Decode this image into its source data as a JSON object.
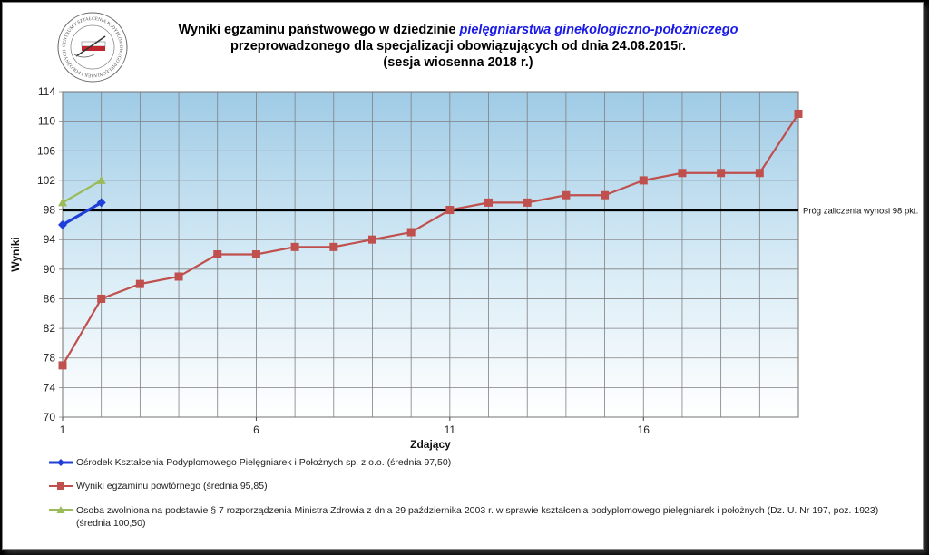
{
  "title": {
    "line1_prefix": "Wyniki egzaminu państwowego w dziedzinie ",
    "line1_highlight": "pielęgniarstwa  ginekologiczno-położniczego",
    "line2": "przeprowadzonego dla specjalizacji obowiązujących od dnia 24.08.2015r.",
    "line3": "(sesja wiosenna 2018 r.)"
  },
  "chart_data": {
    "type": "line",
    "xlabel": "Zdający",
    "ylabel": "Wyniki",
    "ylim": [
      70,
      114
    ],
    "yticks": [
      70,
      74,
      78,
      82,
      86,
      90,
      94,
      98,
      102,
      106,
      110,
      114
    ],
    "xticks": [
      1,
      6,
      11,
      16
    ],
    "xlim": [
      1,
      20
    ],
    "grid": true,
    "threshold": {
      "value": 98,
      "label": "Próg zaliczenia wynosi 98 pkt."
    },
    "series": [
      {
        "name": "Ośrodek Kształcenia Podyplomowego Pielęgniarek i Położnych sp. z o.o. (średnia 97,50)",
        "color": "#1f3fd6",
        "marker": "diamond",
        "x": [
          1,
          2
        ],
        "values": [
          96,
          99
        ]
      },
      {
        "name": "Wyniki egzaminu powtórnego (średnia 95,85)",
        "color": "#c0504d",
        "marker": "square",
        "x": [
          1,
          2,
          3,
          4,
          5,
          6,
          7,
          8,
          9,
          10,
          11,
          12,
          13,
          14,
          15,
          16,
          17,
          18,
          19,
          20
        ],
        "values": [
          77,
          86,
          88,
          89,
          92,
          92,
          93,
          93,
          94,
          95,
          98,
          99,
          99,
          100,
          100,
          102,
          103,
          103,
          103,
          111
        ]
      },
      {
        "name": "Osoba zwolniona na podstawie § 7 rozporządzenia Ministra Zdrowia z dnia 29 października 2003 r. w sprawie kształcenia podyplomowego pielęgniarek i położnych (Dz. U. Nr 197, poz. 1923) (średnia 100,50)",
        "color": "#9bbb59",
        "marker": "triangle",
        "x": [
          1,
          2
        ],
        "values": [
          99,
          102
        ]
      }
    ]
  },
  "legend": {
    "item1_label": "Ośrodek Kształcenia Podyplomowego Pielęgniarek i Położnych sp. z o.o. (średnia 97,50)",
    "item2_label": "Wyniki egzaminu powtórnego (średnia 95,85)",
    "item3_label_line1": "Osoba zwolniona na podstawie § 7 rozporządzenia Ministra Zdrowia z dnia 29 października 2003 r. w sprawie kształcenia podyplomowego pielęgniarek i położnych (Dz. U. Nr 197, poz. 1923)",
    "item3_label_line2": "(średnia 100,50)"
  },
  "logo": {
    "ring_text": "CENTRUM KSZTAŁCENIA PODYPLOMOWEGO PIELĘGNIAREK I POŁOŻNYCH"
  }
}
